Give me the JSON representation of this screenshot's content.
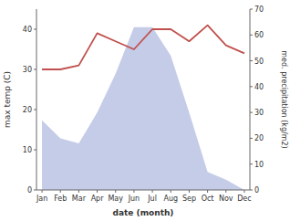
{
  "chart_data": {
    "type": "line",
    "xlabel": "date (month)",
    "ylabel": "max temp (C)",
    "y2label": "med. precipitation (kg/m2)",
    "categories": [
      "Jan",
      "Feb",
      "Mar",
      "Apr",
      "May",
      "Jun",
      "Jul",
      "Aug",
      "Sep",
      "Oct",
      "Nov",
      "Dec"
    ],
    "series": [
      {
        "type": "area",
        "axis": "y2",
        "color": "#c5cce8",
        "values": [
          27,
          20,
          18,
          30,
          45,
          63,
          63,
          52,
          30,
          7,
          4,
          0
        ]
      },
      {
        "type": "line",
        "color": "#c0504d",
        "values": [
          30,
          30,
          31,
          39,
          37,
          35,
          40,
          40,
          37,
          41,
          36,
          34
        ]
      }
    ],
    "ylim": [
      0,
      45
    ],
    "yticks": [
      0,
      10,
      20,
      30,
      40
    ],
    "y2lim": [
      0,
      70
    ],
    "y2ticks": [
      0,
      10,
      20,
      30,
      40,
      50,
      60,
      70
    ],
    "grid": false
  }
}
